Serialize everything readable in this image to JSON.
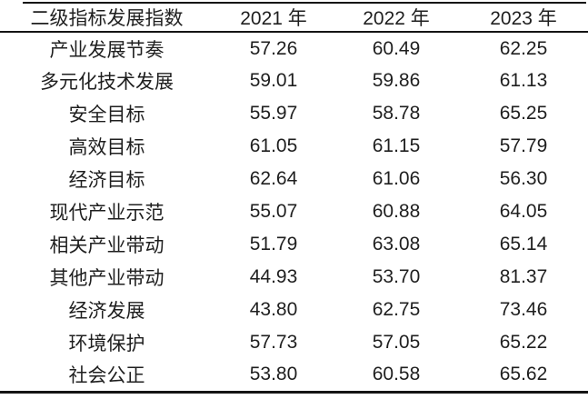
{
  "table": {
    "header": {
      "indicator": "二级指标发展指数",
      "years": [
        "2021 年",
        "2022 年",
        "2023 年"
      ]
    },
    "rows": [
      {
        "label": "产业发展节奏",
        "values": [
          "57.26",
          "60.49",
          "62.25"
        ]
      },
      {
        "label": "多元化技术发展",
        "values": [
          "59.01",
          "59.86",
          "61.13"
        ]
      },
      {
        "label": "安全目标",
        "values": [
          "55.97",
          "58.78",
          "65.25"
        ]
      },
      {
        "label": "高效目标",
        "values": [
          "61.05",
          "61.15",
          "57.79"
        ]
      },
      {
        "label": "经济目标",
        "values": [
          "62.64",
          "61.06",
          "56.30"
        ]
      },
      {
        "label": "现代产业示范",
        "values": [
          "55.07",
          "60.88",
          "64.05"
        ]
      },
      {
        "label": "相关产业带动",
        "values": [
          "51.79",
          "63.08",
          "65.14"
        ]
      },
      {
        "label": "其他产业带动",
        "values": [
          "44.93",
          "53.70",
          "81.37"
        ]
      },
      {
        "label": "经济发展",
        "values": [
          "43.80",
          "62.75",
          "73.46"
        ]
      },
      {
        "label": "环境保护",
        "values": [
          "57.73",
          "57.05",
          "65.22"
        ]
      },
      {
        "label": "社会公正",
        "values": [
          "53.80",
          "60.58",
          "65.62"
        ]
      }
    ]
  },
  "colors": {
    "text": "#1f1f1f",
    "rule": "#141414",
    "background": "#ffffff"
  },
  "chart_data": {
    "type": "table",
    "title": "二级指标发展指数",
    "categories": [
      "产业发展节奏",
      "多元化技术发展",
      "安全目标",
      "高效目标",
      "经济目标",
      "现代产业示范",
      "相关产业带动",
      "其他产业带动",
      "经济发展",
      "环境保护",
      "社会公正"
    ],
    "series": [
      {
        "name": "2021 年",
        "values": [
          57.26,
          59.01,
          55.97,
          61.05,
          62.64,
          55.07,
          51.79,
          44.93,
          43.8,
          57.73,
          53.8
        ]
      },
      {
        "name": "2022 年",
        "values": [
          60.49,
          59.86,
          58.78,
          61.15,
          61.06,
          60.88,
          63.08,
          53.7,
          62.75,
          57.05,
          60.58
        ]
      },
      {
        "name": "2023 年",
        "values": [
          62.25,
          61.13,
          65.25,
          57.79,
          56.3,
          64.05,
          65.14,
          81.37,
          73.46,
          65.22,
          65.62
        ]
      }
    ]
  }
}
